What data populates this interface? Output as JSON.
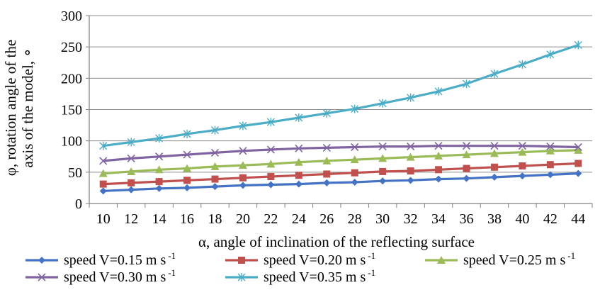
{
  "chart_data": {
    "type": "line",
    "xlabel": "α, angle of inclination of the reflecting surface",
    "ylabel_lines": [
      "φ, rotation angle of the",
      "axis of the model, ∘"
    ],
    "x": [
      10,
      12,
      14,
      16,
      18,
      20,
      22,
      24,
      26,
      28,
      30,
      32,
      34,
      36,
      38,
      40,
      42,
      44
    ],
    "ylim": [
      0,
      300
    ],
    "yticks": [
      0,
      50,
      100,
      150,
      200,
      250,
      300
    ],
    "grid": "horizontal",
    "legend_position": "bottom",
    "series": [
      {
        "name": "speed V=0.15 m s",
        "unit_sup": "-1",
        "color": "#4472c4",
        "marker": "diamond",
        "values": [
          20,
          22,
          24,
          25,
          27,
          29,
          30,
          31,
          33,
          34,
          36,
          37,
          39,
          40,
          42,
          44,
          46,
          48
        ]
      },
      {
        "name": "speed V=0.20 m s",
        "unit_sup": "-1",
        "color": "#c0504d",
        "marker": "square",
        "values": [
          31,
          33,
          35,
          37,
          39,
          41,
          43,
          45,
          47,
          49,
          51,
          52,
          54,
          56,
          58,
          60,
          62,
          64
        ]
      },
      {
        "name": "speed V=0.25 m s",
        "unit_sup": "-1",
        "color": "#9bbb59",
        "marker": "triangle",
        "values": [
          48,
          51,
          54,
          56,
          59,
          61,
          63,
          66,
          68,
          70,
          72,
          74,
          76,
          78,
          80,
          82,
          84,
          85
        ]
      },
      {
        "name": "speed V=0.30 m s",
        "unit_sup": "-1",
        "color": "#8064a2",
        "marker": "x",
        "values": [
          68,
          72,
          75,
          78,
          81,
          84,
          86,
          88,
          89,
          90,
          91,
          91,
          92,
          92,
          92,
          92,
          91,
          90
        ]
      },
      {
        "name": "speed V=0.35 m s",
        "unit_sup": "-1",
        "color": "#4bacc6",
        "marker": "star",
        "values": [
          92,
          98,
          104,
          111,
          117,
          124,
          130,
          137,
          144,
          151,
          160,
          169,
          179,
          191,
          207,
          222,
          238,
          253
        ]
      }
    ]
  }
}
